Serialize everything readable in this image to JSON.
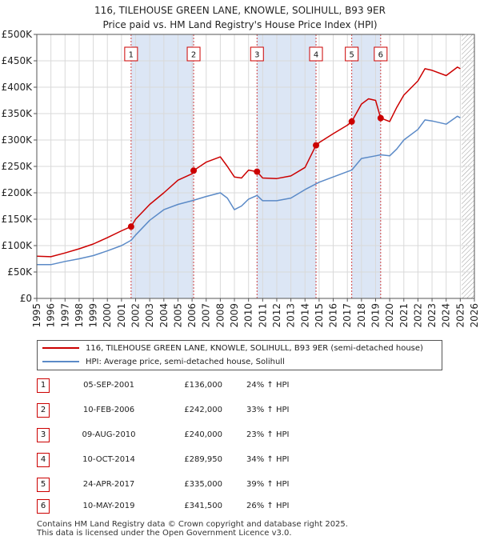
{
  "title_line1": "116, TILEHOUSE GREEN LANE, KNOWLE, SOLIHULL, B93 9ER",
  "title_line2": "Price paid vs. HM Land Registry's House Price Index (HPI)",
  "legend": {
    "property": "116, TILEHOUSE GREEN LANE, KNOWLE, SOLIHULL, B93 9ER (semi-detached house)",
    "hpi": "HPI: Average price, semi-detached house, Solihull"
  },
  "footer_line1": "Contains HM Land Registry data © Crown copyright and database right 2025.",
  "footer_line2": "This data is licensed under the Open Government Licence v3.0.",
  "colors": {
    "property": "#cc0000",
    "hpi": "#5b8ac7",
    "shade": "#dce6f5",
    "grid": "#d9d9d9"
  },
  "sales": [
    {
      "n": "1",
      "date": "05-SEP-2001",
      "price": "£136,000",
      "hpi": "24% ↑ HPI"
    },
    {
      "n": "2",
      "date": "10-FEB-2006",
      "price": "£242,000",
      "hpi": "33% ↑ HPI"
    },
    {
      "n": "3",
      "date": "09-AUG-2010",
      "price": "£240,000",
      "hpi": "23% ↑ HPI"
    },
    {
      "n": "4",
      "date": "10-OCT-2014",
      "price": "£289,950",
      "hpi": "34% ↑ HPI"
    },
    {
      "n": "5",
      "date": "24-APR-2017",
      "price": "£335,000",
      "hpi": "39% ↑ HPI"
    },
    {
      "n": "6",
      "date": "10-MAY-2019",
      "price": "£341,500",
      "hpi": "26% ↑ HPI"
    }
  ],
  "chart_data": {
    "type": "line",
    "xlim": [
      1995,
      2026
    ],
    "ylim": [
      0,
      500000
    ],
    "x_ticks": [
      "1995",
      "1996",
      "1997",
      "1998",
      "1999",
      "2000",
      "2001",
      "2002",
      "2003",
      "2004",
      "2005",
      "2006",
      "2007",
      "2008",
      "2009",
      "2010",
      "2011",
      "2012",
      "2013",
      "2014",
      "2015",
      "2016",
      "2017",
      "2018",
      "2019",
      "2020",
      "2021",
      "2022",
      "2023",
      "2024",
      "2025",
      "2026"
    ],
    "y_ticks": [
      {
        "v": 0,
        "label": "£0"
      },
      {
        "v": 50000,
        "label": "£50K"
      },
      {
        "v": 100000,
        "label": "£100K"
      },
      {
        "v": 150000,
        "label": "£150K"
      },
      {
        "v": 200000,
        "label": "£200K"
      },
      {
        "v": 250000,
        "label": "£250K"
      },
      {
        "v": 300000,
        "label": "£300K"
      },
      {
        "v": 350000,
        "label": "£350K"
      },
      {
        "v": 400000,
        "label": "£400K"
      },
      {
        "v": 450000,
        "label": "£450K"
      },
      {
        "v": 500000,
        "label": "£500K"
      }
    ],
    "shaded_ranges": [
      [
        2001.68,
        2006.11
      ],
      [
        2010.6,
        2014.78
      ],
      [
        2017.31,
        2019.36
      ]
    ],
    "hatched_from": 2025.1,
    "markers": [
      {
        "n": "1",
        "x": 2001.68,
        "y": 136000
      },
      {
        "n": "2",
        "x": 2006.11,
        "y": 242000
      },
      {
        "n": "3",
        "x": 2010.6,
        "y": 240000
      },
      {
        "n": "4",
        "x": 2014.78,
        "y": 289950
      },
      {
        "n": "5",
        "x": 2017.31,
        "y": 335000
      },
      {
        "n": "6",
        "x": 2019.36,
        "y": 341500
      }
    ],
    "series": [
      {
        "name": "116, TILEHOUSE GREEN LANE, KNOWLE, SOLIHULL, B93 9ER (semi-detached house)",
        "color": "#cc0000",
        "points": [
          [
            1995,
            80000
          ],
          [
            1996,
            79000
          ],
          [
            1997,
            86000
          ],
          [
            1998,
            94000
          ],
          [
            1999,
            103000
          ],
          [
            2000,
            115000
          ],
          [
            2001,
            128000
          ],
          [
            2001.68,
            136000
          ],
          [
            2002,
            150000
          ],
          [
            2003,
            178000
          ],
          [
            2004,
            200000
          ],
          [
            2005,
            224000
          ],
          [
            2006,
            236000
          ],
          [
            2006.11,
            242000
          ],
          [
            2007,
            258000
          ],
          [
            2008,
            268000
          ],
          [
            2008.5,
            250000
          ],
          [
            2009,
            230000
          ],
          [
            2009.5,
            228000
          ],
          [
            2010,
            243000
          ],
          [
            2010.6,
            240000
          ],
          [
            2011,
            228000
          ],
          [
            2012,
            227000
          ],
          [
            2013,
            232000
          ],
          [
            2014,
            248000
          ],
          [
            2014.78,
            289950
          ],
          [
            2015,
            295000
          ],
          [
            2016,
            312000
          ],
          [
            2017,
            328000
          ],
          [
            2017.31,
            335000
          ],
          [
            2018,
            368000
          ],
          [
            2018.5,
            378000
          ],
          [
            2019,
            375000
          ],
          [
            2019.36,
            341500
          ],
          [
            2020,
            335000
          ],
          [
            2020.5,
            362000
          ],
          [
            2021,
            385000
          ],
          [
            2022,
            412000
          ],
          [
            2022.5,
            435000
          ],
          [
            2023,
            432000
          ],
          [
            2024,
            422000
          ],
          [
            2024.8,
            438000
          ],
          [
            2025,
            435000
          ]
        ]
      },
      {
        "name": "HPI: Average price, semi-detached house, Solihull",
        "color": "#5b8ac7",
        "points": [
          [
            1995,
            64000
          ],
          [
            1996,
            64000
          ],
          [
            1997,
            70000
          ],
          [
            1998,
            75000
          ],
          [
            1999,
            81000
          ],
          [
            2000,
            90000
          ],
          [
            2001,
            100000
          ],
          [
            2001.68,
            110000
          ],
          [
            2002,
            120000
          ],
          [
            2003,
            148000
          ],
          [
            2004,
            168000
          ],
          [
            2005,
            178000
          ],
          [
            2006,
            185000
          ],
          [
            2007,
            193000
          ],
          [
            2008,
            200000
          ],
          [
            2008.5,
            190000
          ],
          [
            2009,
            168000
          ],
          [
            2009.5,
            175000
          ],
          [
            2010,
            188000
          ],
          [
            2010.6,
            195000
          ],
          [
            2011,
            185000
          ],
          [
            2012,
            185000
          ],
          [
            2013,
            190000
          ],
          [
            2014,
            206000
          ],
          [
            2014.78,
            217000
          ],
          [
            2015,
            220000
          ],
          [
            2016,
            230000
          ],
          [
            2017,
            240000
          ],
          [
            2017.31,
            243000
          ],
          [
            2018,
            265000
          ],
          [
            2019,
            270000
          ],
          [
            2019.36,
            272000
          ],
          [
            2020,
            270000
          ],
          [
            2020.5,
            283000
          ],
          [
            2021,
            300000
          ],
          [
            2022,
            320000
          ],
          [
            2022.5,
            338000
          ],
          [
            2023,
            336000
          ],
          [
            2024,
            330000
          ],
          [
            2024.8,
            345000
          ],
          [
            2025,
            342000
          ]
        ]
      }
    ]
  }
}
